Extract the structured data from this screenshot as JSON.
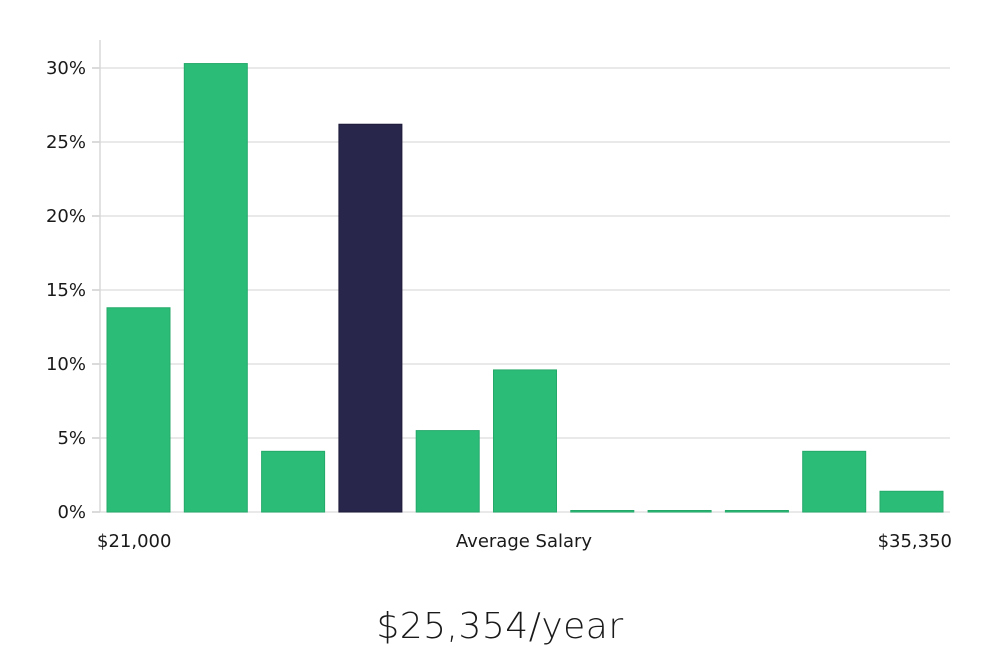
{
  "chart_data": {
    "type": "bar",
    "x_range_labels": {
      "min": "$21,000",
      "center": "Average Salary",
      "max": "$35,350"
    },
    "values": [
      13.8,
      30.3,
      4.1,
      26.2,
      5.5,
      9.6,
      0,
      0,
      0,
      4.1,
      1.4
    ],
    "highlight_index": 3,
    "y_ticks": [
      "0%",
      "5%",
      "10%",
      "15%",
      "20%",
      "25%",
      "30%"
    ],
    "y_tick_values": [
      0,
      5,
      10,
      15,
      20,
      25,
      30
    ],
    "ylim": [
      0,
      32
    ],
    "grid": true,
    "colors": {
      "bar": "#2bbd78",
      "highlight": "#28264a",
      "grid": "#e2e2e2",
      "axis": "#d8d8d8"
    }
  },
  "summary": {
    "average_salary": "$25,354/year"
  }
}
